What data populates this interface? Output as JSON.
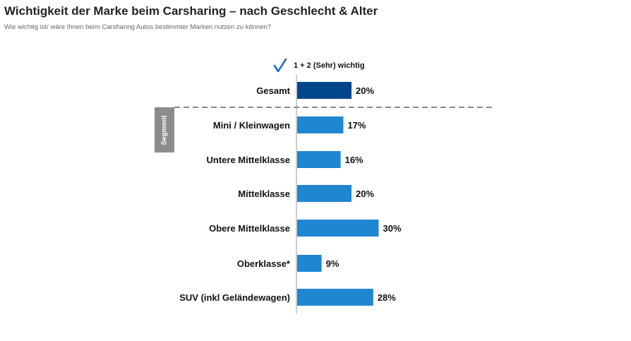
{
  "title": "Wichtigkeit der Marke beim Carsharing – nach Geschlecht & Alter",
  "subtitle": "Wie wichtig ist/ wäre Ihnen beim Carsharing Autos bestimmter Marken nutzen zu können?",
  "legend": {
    "icon": "check-icon",
    "label": "1 + 2 (Sehr) wichtig"
  },
  "segment_label": "Segment",
  "colors": {
    "total_bar": "#00468b",
    "segment_bar": "#1f86d1",
    "check": "#1f6fc5",
    "divider": "#888888",
    "axis": "#999999"
  },
  "chart_data": {
    "type": "bar",
    "orientation": "horizontal",
    "categories": [
      "Gesamt",
      "Mini / Kleinwagen",
      "Untere Mittelklasse",
      "Mittelklasse",
      "Obere Mittelklasse",
      "Oberklasse*",
      "SUV (inkl Geländewagen)"
    ],
    "values": [
      20,
      17,
      16,
      20,
      30,
      9,
      28
    ],
    "data_labels": [
      "20%",
      "17%",
      "16%",
      "20%",
      "30%",
      "9%",
      "28%"
    ],
    "series": [
      {
        "name": "1 + 2 (Sehr) wichtig",
        "values": [
          20,
          17,
          16,
          20,
          30,
          9,
          28
        ]
      }
    ],
    "groups": [
      {
        "name": "",
        "categories": [
          "Gesamt"
        ]
      },
      {
        "name": "Segment",
        "categories": [
          "Mini / Kleinwagen",
          "Untere Mittelklasse",
          "Mittelklasse",
          "Obere Mittelklasse",
          "Oberklasse*",
          "SUV (inkl Geländewagen)"
        ]
      }
    ],
    "xlim": [
      0,
      30
    ],
    "grid": false,
    "legend_position": "top"
  }
}
